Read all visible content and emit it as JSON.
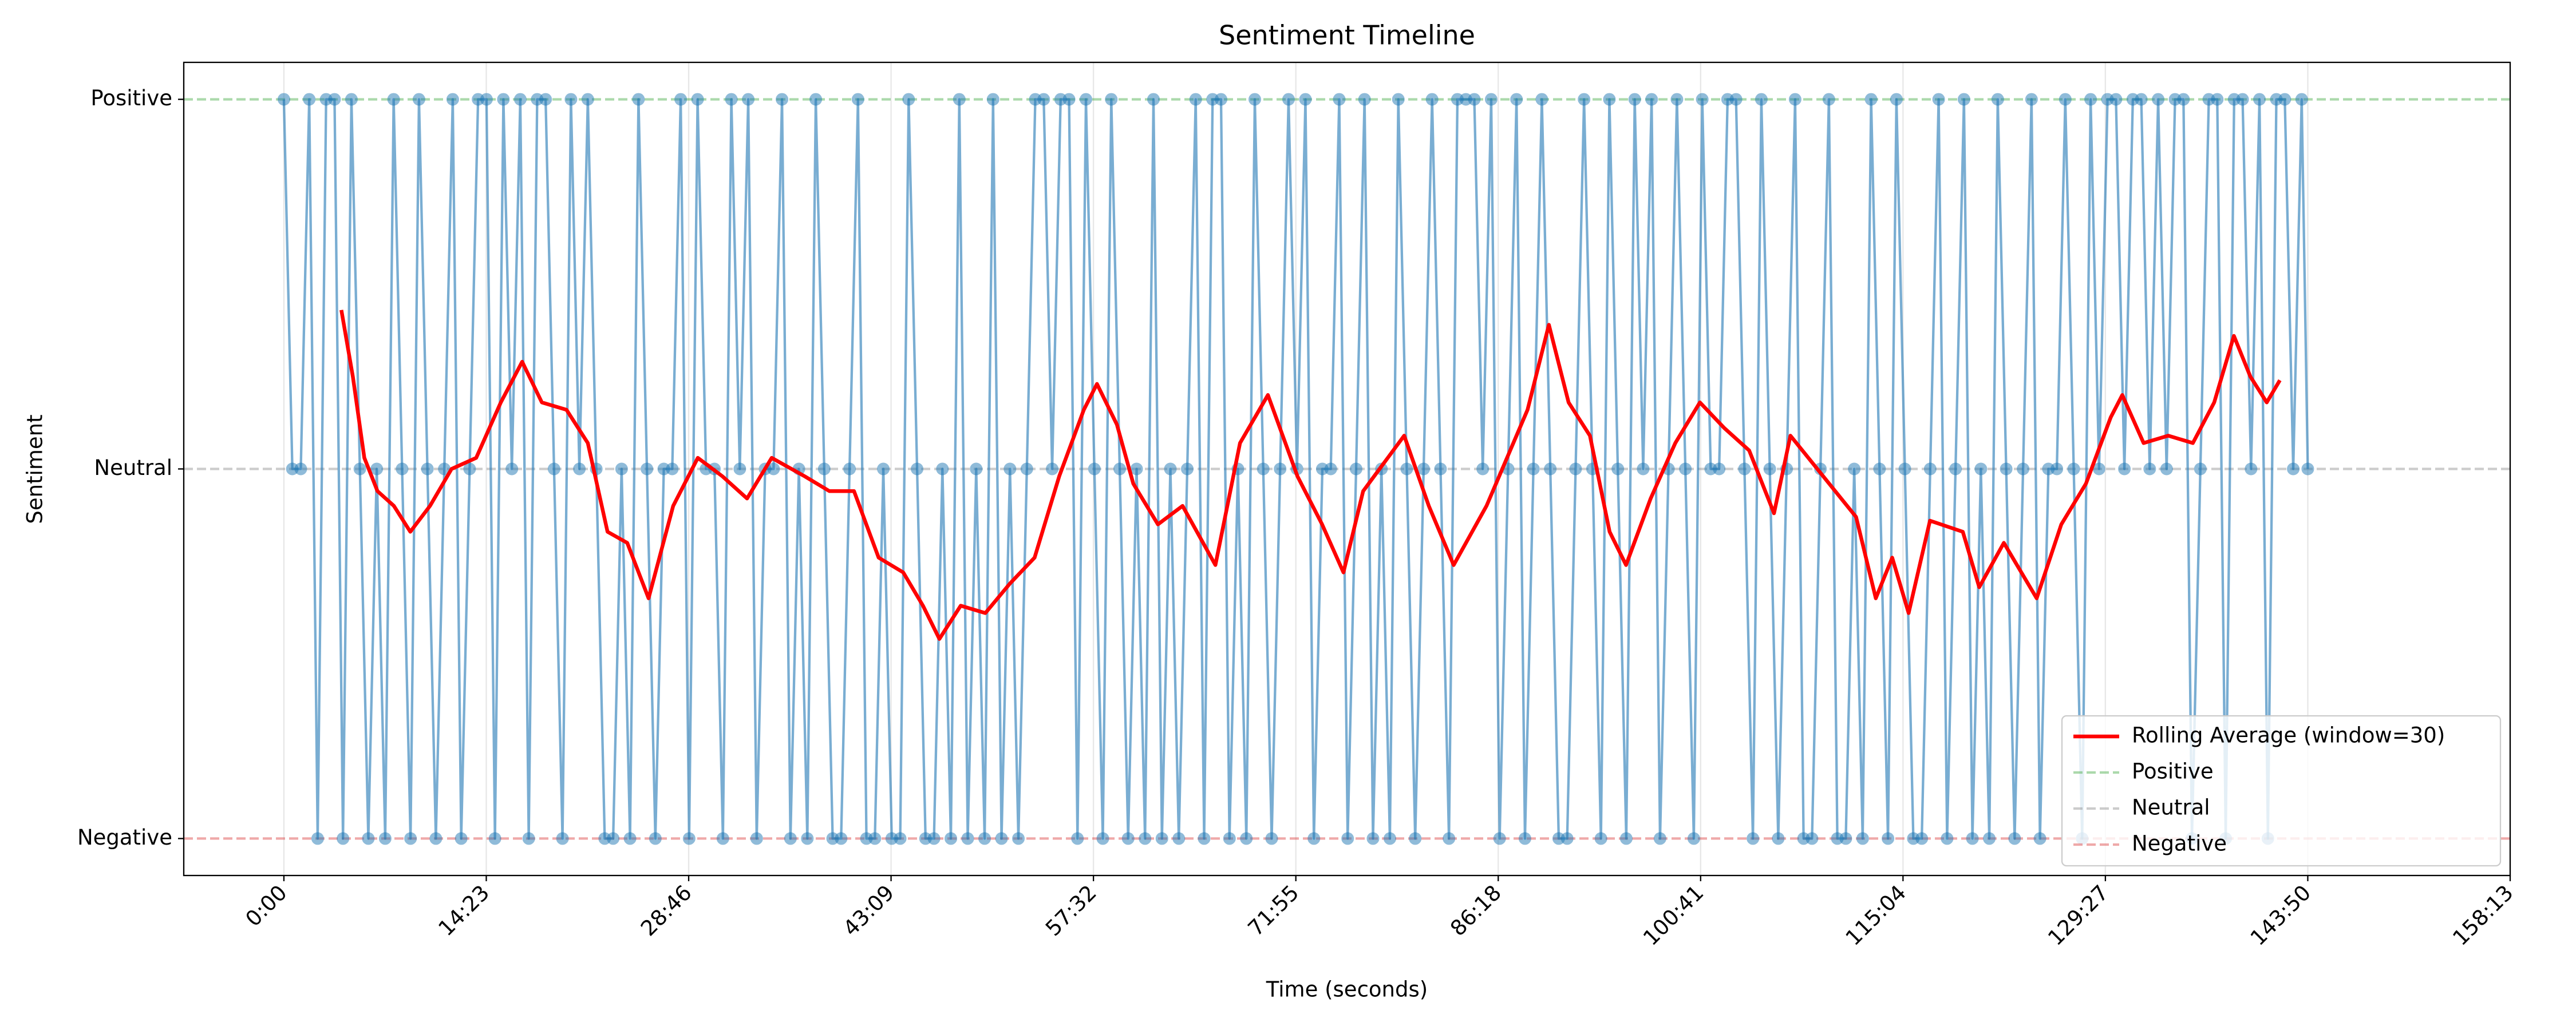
{
  "chart_data": {
    "type": "line",
    "title": "Sentiment Timeline",
    "xlabel": "Time (seconds)",
    "ylabel": "Sentiment",
    "xlim": [
      -427,
      9493
    ],
    "ylim": [
      -1.1,
      1.1
    ],
    "xticks": [
      {
        "value": 0,
        "label": "0:00"
      },
      {
        "value": 863,
        "label": "14:23"
      },
      {
        "value": 1726,
        "label": "28:46"
      },
      {
        "value": 2589,
        "label": "43:09"
      },
      {
        "value": 3452,
        "label": "57:32"
      },
      {
        "value": 4315,
        "label": "71:55"
      },
      {
        "value": 5178,
        "label": "86:18"
      },
      {
        "value": 6041,
        "label": "100:41"
      },
      {
        "value": 6904,
        "label": "115:04"
      },
      {
        "value": 7767,
        "label": "129:27"
      },
      {
        "value": 8630,
        "label": "143:50"
      },
      {
        "value": 9493,
        "label": "158:13"
      }
    ],
    "yticks": [
      {
        "value": -1,
        "label": "Negative"
      },
      {
        "value": 0,
        "label": "Neutral"
      },
      {
        "value": 1,
        "label": "Positive"
      }
    ],
    "grid": "x",
    "legend": "lower right",
    "series": [
      {
        "color": "#1f77b4",
        "markers": true,
        "x": [
          0,
          36,
          72,
          108,
          144,
          180,
          216,
          252,
          288,
          324,
          360,
          396,
          432,
          468,
          504,
          540,
          576,
          612,
          648,
          684,
          720,
          756,
          792,
          828,
          864,
          900,
          936,
          972,
          1008,
          1044,
          1080,
          1116,
          1152,
          1188,
          1224,
          1260,
          1296,
          1332,
          1368,
          1404,
          1440,
          1476,
          1512,
          1548,
          1584,
          1620,
          1656,
          1692,
          1728,
          1764,
          1800,
          1836,
          1872,
          1908,
          1944,
          1980,
          2016,
          2052,
          2088,
          2124,
          2160,
          2196,
          2232,
          2268,
          2304,
          2340,
          2376,
          2412,
          2448,
          2484,
          2520,
          2556,
          2592,
          2628,
          2664,
          2700,
          2736,
          2772,
          2808,
          2844,
          2880,
          2916,
          2952,
          2988,
          3024,
          3060,
          3096,
          3132,
          3168,
          3204,
          3240,
          3276,
          3312,
          3348,
          3384,
          3420,
          3456,
          3492,
          3528,
          3564,
          3600,
          3636,
          3672,
          3708,
          3744,
          3780,
          3816,
          3852,
          3888,
          3924,
          3960,
          3996,
          4032,
          4068,
          4104,
          4140,
          4176,
          4212,
          4248,
          4284,
          4320,
          4356,
          4392,
          4428,
          4464,
          4500,
          4536,
          4572,
          4608,
          4644,
          4680,
          4716,
          4752,
          4788,
          4824,
          4860,
          4896,
          4932,
          4968,
          5004,
          5040,
          5076,
          5112,
          5148,
          5184,
          5220,
          5256,
          5292,
          5328,
          5364,
          5400,
          5436,
          5472,
          5508,
          5544,
          5580,
          5616,
          5652,
          5688,
          5724,
          5760,
          5796,
          5832,
          5868,
          5904,
          5940,
          5976,
          6012,
          6048,
          6084,
          6120,
          6156,
          6192,
          6228,
          6264,
          6300,
          6336,
          6372,
          6408,
          6444,
          6480,
          6516,
          6552,
          6588,
          6624,
          6660,
          6696,
          6732,
          6768,
          6804,
          6840,
          6876,
          6912,
          6948,
          6984,
          7020,
          7056,
          7092,
          7128,
          7164,
          7200,
          7236,
          7272,
          7308,
          7344,
          7380,
          7416,
          7452,
          7488,
          7524,
          7560,
          7596,
          7632,
          7668,
          7704,
          7740,
          7776,
          7812,
          7848,
          7884,
          7920,
          7956,
          7992,
          8028,
          8064,
          8100,
          8136,
          8172,
          8208,
          8244,
          8280,
          8316,
          8352,
          8388,
          8424,
          8460,
          8496,
          8532,
          8568,
          8604,
          8630
        ],
        "values": [
          1,
          0,
          0,
          1,
          -1,
          1,
          1,
          -1,
          1,
          0,
          -1,
          0,
          -1,
          1,
          0,
          -1,
          1,
          0,
          -1,
          0,
          1,
          -1,
          0,
          1,
          1,
          -1,
          1,
          0,
          1,
          -1,
          1,
          1,
          0,
          -1,
          1,
          0,
          1,
          0,
          -1,
          -1,
          0,
          -1,
          1,
          0,
          -1,
          0,
          0,
          1,
          -1,
          1,
          0,
          0,
          -1,
          1,
          0,
          1,
          -1,
          0,
          0,
          1,
          -1,
          0,
          -1,
          1,
          0,
          -1,
          -1,
          0,
          1,
          -1,
          -1,
          0,
          -1,
          -1,
          1,
          0,
          -1,
          -1,
          0,
          -1,
          1,
          -1,
          0,
          -1,
          1,
          -1,
          0,
          -1,
          0,
          1,
          1,
          0,
          1,
          1,
          -1,
          1,
          0,
          -1,
          1,
          0,
          -1,
          0,
          -1,
          1,
          -1,
          0,
          -1,
          0,
          1,
          -1,
          1,
          1,
          -1,
          0,
          -1,
          1,
          0,
          -1,
          0,
          1,
          0,
          1,
          -1,
          0,
          0,
          1,
          -1,
          0,
          1,
          -1,
          0,
          -1,
          1,
          0,
          -1,
          0,
          1,
          0,
          -1,
          1,
          1,
          1,
          0,
          1,
          -1,
          0,
          1,
          -1,
          0,
          1,
          0,
          -1,
          -1,
          0,
          1,
          0,
          -1,
          1,
          0,
          -1,
          1,
          0,
          1,
          -1,
          0,
          1,
          0,
          -1,
          1,
          0,
          0,
          1,
          1,
          0,
          -1,
          1,
          0,
          -1,
          0,
          1,
          -1,
          -1,
          0,
          1,
          -1,
          -1,
          0,
          -1,
          1,
          0,
          -1,
          1,
          0,
          -1,
          -1,
          0,
          1,
          -1,
          0,
          1,
          -1,
          0,
          -1,
          1,
          0,
          -1,
          0,
          1,
          -1,
          0,
          0,
          1,
          0,
          -1,
          1,
          0,
          1,
          1,
          0,
          1,
          1,
          0,
          1,
          0,
          1,
          1,
          -1,
          0,
          1,
          1,
          -1,
          1,
          1,
          0,
          1,
          -1,
          1,
          1,
          0,
          1,
          0
        ]
      },
      {
        "name": "Rolling Average (window=30)",
        "color": "#ff0000",
        "markers": false,
        "x": [
          245,
          294,
          343,
          399,
          469,
          539,
          623,
          715,
          820,
          925,
          1016,
          1100,
          1205,
          1296,
          1380,
          1464,
          1555,
          1660,
          1765,
          1870,
          1975,
          2080,
          2221,
          2326,
          2431,
          2536,
          2641,
          2725,
          2795,
          2886,
          2991,
          3096,
          3201,
          3306,
          3411,
          3467,
          3552,
          3622,
          3727,
          3832,
          3972,
          4077,
          4196,
          4322,
          4427,
          4518,
          4602,
          4707,
          4777,
          4882,
          4988,
          5128,
          5303,
          5394,
          5478,
          5569,
          5653,
          5723,
          5828,
          5933,
          6038,
          6143,
          6248,
          6354,
          6424,
          6564,
          6704,
          6788,
          6858,
          6928,
          7019,
          7159,
          7229,
          7334,
          7474,
          7579,
          7684,
          7790,
          7839,
          7930,
          8035,
          8140,
          8231,
          8315,
          8385,
          8455,
          8511
        ],
        "values": [
          0.43,
          0.25,
          0.03,
          -0.06,
          -0.1,
          -0.17,
          -0.1,
          0.0,
          0.03,
          0.18,
          0.29,
          0.18,
          0.16,
          0.07,
          -0.17,
          -0.2,
          -0.35,
          -0.1,
          0.03,
          -0.02,
          -0.08,
          0.03,
          -0.02,
          -0.06,
          -0.06,
          -0.24,
          -0.28,
          -0.37,
          -0.46,
          -0.37,
          -0.39,
          -0.31,
          -0.24,
          -0.02,
          0.16,
          0.23,
          0.12,
          -0.04,
          -0.15,
          -0.1,
          -0.26,
          0.07,
          0.2,
          -0.02,
          -0.15,
          -0.28,
          -0.06,
          0.03,
          0.09,
          -0.1,
          -0.26,
          -0.1,
          0.16,
          0.39,
          0.18,
          0.09,
          -0.17,
          -0.26,
          -0.08,
          0.07,
          0.18,
          0.11,
          0.05,
          -0.12,
          0.09,
          -0.02,
          -0.13,
          -0.35,
          -0.24,
          -0.39,
          -0.14,
          -0.17,
          -0.32,
          -0.2,
          -0.35,
          -0.15,
          -0.04,
          0.14,
          0.2,
          0.07,
          0.09,
          0.07,
          0.18,
          0.36,
          0.25,
          0.18,
          0.24
        ]
      }
    ],
    "reference_lines": [
      {
        "name": "Positive",
        "value": 1,
        "color": "#2ca02c"
      },
      {
        "name": "Neutral",
        "value": 0,
        "color": "#7f7f7f"
      },
      {
        "name": "Negative",
        "value": -1,
        "color": "#d62728"
      }
    ]
  }
}
